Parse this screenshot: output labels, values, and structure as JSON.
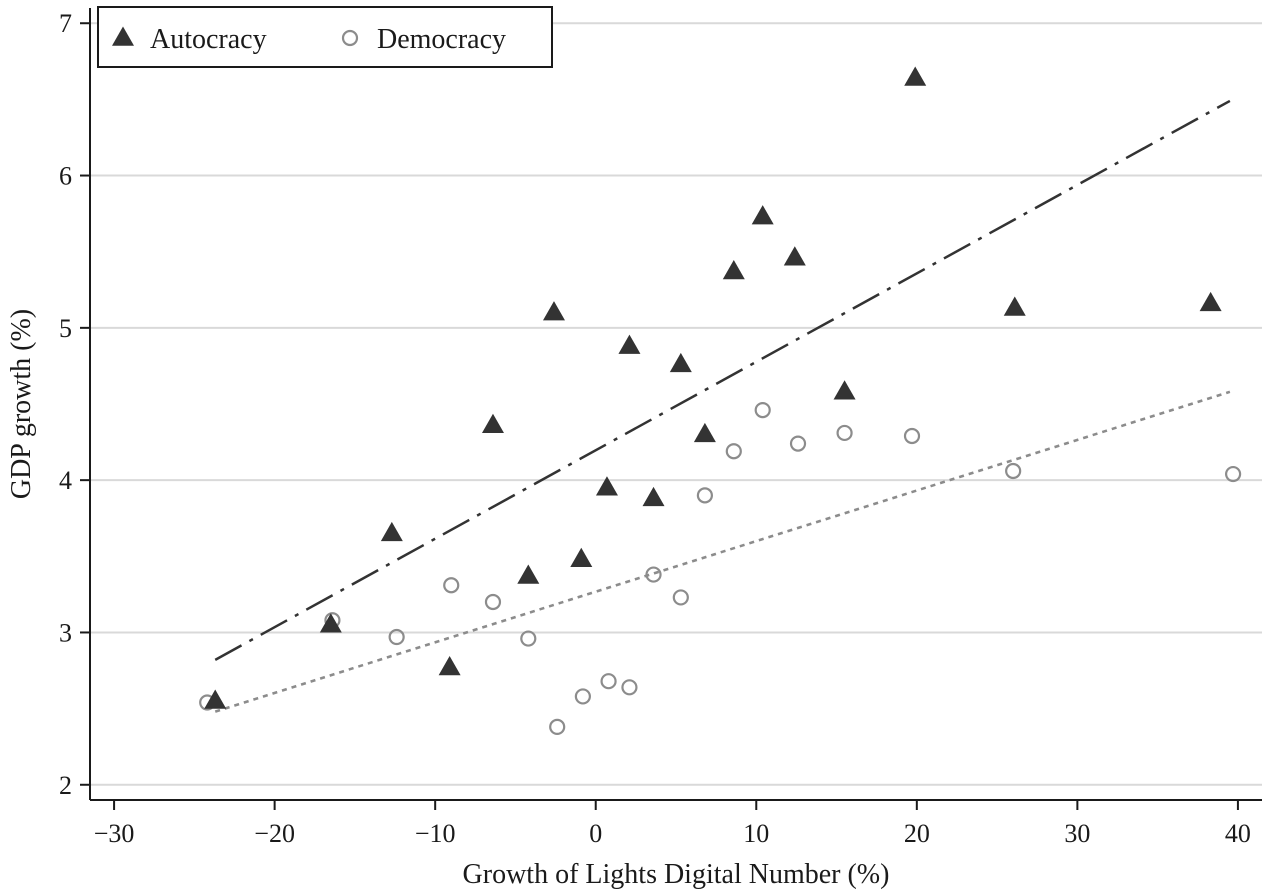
{
  "colors": {
    "background": "#ffffff",
    "grid": "#d9d9d9",
    "axis": "#1a1a1a",
    "autocracy": "#333333",
    "democracy": "#8c8c8c"
  },
  "chart_data": {
    "type": "scatter",
    "title": "",
    "xlabel": "Growth of Lights Digital Number (%)",
    "ylabel": "GDP growth (%)",
    "xlim": [
      -31.5,
      41.5
    ],
    "ylim": [
      1.9,
      7.1
    ],
    "x_ticks": [
      -30,
      -20,
      -10,
      0,
      10,
      20,
      30,
      40
    ],
    "x_tick_labels": [
      "−30",
      "−20",
      "−10",
      "0",
      "10",
      "20",
      "30",
      "40"
    ],
    "y_ticks": [
      2,
      3,
      4,
      5,
      6,
      7
    ],
    "y_tick_labels": [
      "2",
      "3",
      "4",
      "5",
      "6",
      "7"
    ],
    "grid": "horizontal",
    "legend_position": "top-left",
    "series": [
      {
        "name": "Autocracy",
        "marker": "triangle",
        "color": "#333333",
        "x": [
          -23.7,
          -16.5,
          -12.7,
          -9.1,
          -6.4,
          -4.2,
          -2.6,
          -0.9,
          0.7,
          2.1,
          3.6,
          5.3,
          6.8,
          8.6,
          10.4,
          12.4,
          15.5,
          19.9,
          26.1,
          38.3
        ],
        "y": [
          2.55,
          3.05,
          3.65,
          2.77,
          4.36,
          3.37,
          5.1,
          3.48,
          3.95,
          4.88,
          3.88,
          4.76,
          4.3,
          5.37,
          5.73,
          5.46,
          4.58,
          6.64,
          5.13,
          5.16
        ],
        "fit": {
          "style": "dash-dot",
          "x": [
            -23.7,
            39.5
          ],
          "y": [
            2.82,
            6.49
          ]
        }
      },
      {
        "name": "Democracy",
        "marker": "hollow-circle",
        "color": "#8c8c8c",
        "x": [
          -24.2,
          -16.4,
          -12.4,
          -9.0,
          -6.4,
          -4.2,
          -2.4,
          -0.8,
          0.8,
          2.1,
          3.6,
          5.3,
          6.8,
          8.6,
          10.4,
          12.6,
          15.5,
          19.7,
          26.0,
          39.7
        ],
        "y": [
          2.54,
          3.08,
          2.97,
          3.31,
          3.2,
          2.96,
          2.38,
          2.58,
          2.68,
          2.64,
          3.38,
          3.23,
          3.9,
          4.19,
          4.46,
          4.24,
          4.31,
          4.29,
          4.06,
          4.04
        ],
        "fit": {
          "style": "dotted",
          "x": [
            -23.7,
            39.5
          ],
          "y": [
            2.48,
            4.58
          ]
        }
      }
    ]
  }
}
